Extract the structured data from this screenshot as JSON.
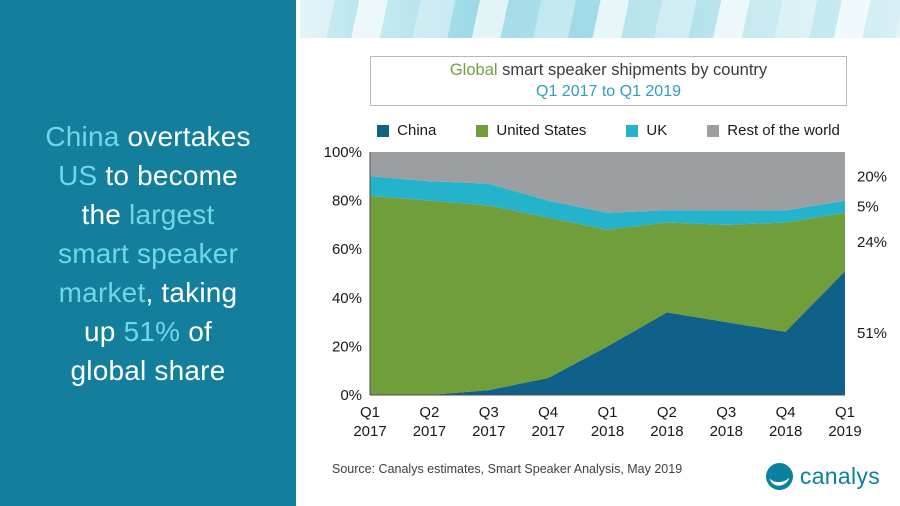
{
  "left_panel": {
    "lines": [
      [
        {
          "t": "China",
          "h": true
        },
        {
          "t": " overtakes",
          "h": false
        }
      ],
      [
        {
          "t": "US",
          "h": true
        },
        {
          "t": " to become",
          "h": false
        }
      ],
      [
        {
          "t": "the ",
          "h": false
        },
        {
          "t": "largest",
          "h": true
        }
      ],
      [
        {
          "t": "smart speaker",
          "h": true
        }
      ],
      [
        {
          "t": "market",
          "h": true
        },
        {
          "t": ", taking",
          "h": false
        }
      ],
      [
        {
          "t": "up ",
          "h": false
        },
        {
          "t": "51%",
          "h": true
        },
        {
          "t": " of",
          "h": false
        }
      ],
      [
        {
          "t": "global share",
          "h": false
        }
      ]
    ]
  },
  "title": {
    "line1_green": "Global",
    "line1_rest": " smart speaker shipments by country",
    "line2": "Q1 2017 to Q1 2019"
  },
  "source": {
    "text": "Source:  Canalys estimates, Smart Speaker Analysis, May 2019"
  },
  "logo": {
    "text": "canalys"
  },
  "colors": {
    "panel_teal": "#147e9d",
    "highlight_cyan": "#70d7e8",
    "title_green": "#76a03e",
    "title_teal": "#2f9fc0",
    "logo_teal": "#0b81a0"
  },
  "chart_data": {
    "type": "area",
    "stacked": true,
    "title": "Global smart speaker shipments by country",
    "subtitle": "Q1 2017 to Q1 2019",
    "categories": [
      {
        "q": "Q1",
        "year": "2017"
      },
      {
        "q": "Q2",
        "year": "2017"
      },
      {
        "q": "Q3",
        "year": "2017"
      },
      {
        "q": "Q4",
        "year": "2017"
      },
      {
        "q": "Q1",
        "year": "2018"
      },
      {
        "q": "Q2",
        "year": "2018"
      },
      {
        "q": "Q3",
        "year": "2018"
      },
      {
        "q": "Q4",
        "year": "2018"
      },
      {
        "q": "Q1",
        "year": "2019"
      }
    ],
    "series": [
      {
        "name": "China",
        "color": "#10618a",
        "values": [
          0,
          0,
          2,
          7,
          20,
          34,
          30,
          26,
          51
        ],
        "final_share_label": "51%"
      },
      {
        "name": "United States",
        "color": "#6f9e3b",
        "values": [
          82,
          80,
          76,
          66,
          48,
          37,
          40,
          45,
          24
        ],
        "final_share_label": "24%"
      },
      {
        "name": "UK",
        "color": "#25b3cb",
        "values": [
          8,
          8,
          9,
          7,
          7,
          5,
          6,
          5,
          5
        ],
        "final_share_label": "5%"
      },
      {
        "name": "Rest of the world",
        "color": "#9b9fa1",
        "values": [
          10,
          12,
          13,
          20,
          25,
          24,
          24,
          24,
          20
        ],
        "final_share_label": "20%"
      }
    ],
    "ylim": [
      0,
      100
    ],
    "yticks": [
      {
        "v": 0,
        "label": "0%"
      },
      {
        "v": 20,
        "label": "20%"
      },
      {
        "v": 40,
        "label": "40%"
      },
      {
        "v": 60,
        "label": "60%"
      },
      {
        "v": 80,
        "label": "80%"
      },
      {
        "v": 100,
        "label": "100%"
      }
    ],
    "grid": false,
    "legend_position": "top"
  }
}
